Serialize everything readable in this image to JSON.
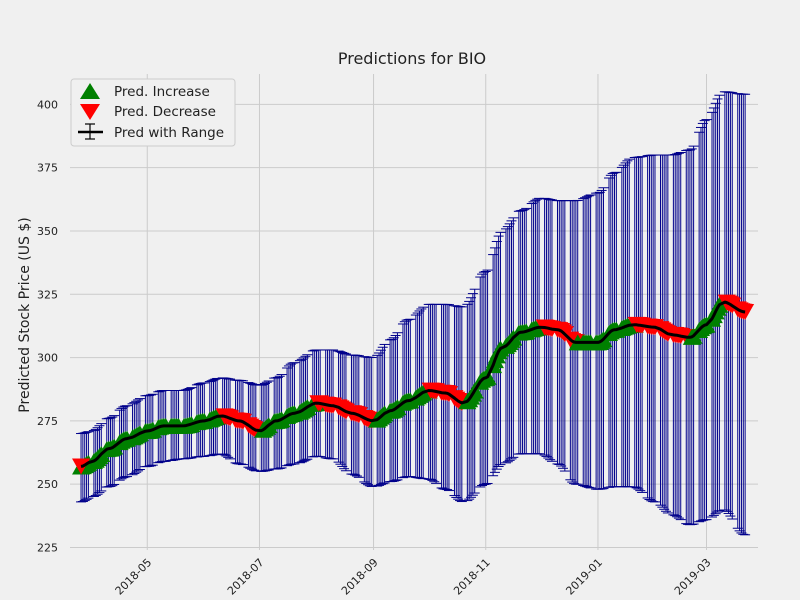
{
  "chart_data": {
    "type": "line",
    "title": "Predictions for BIO",
    "xlabel": "",
    "ylabel": "Predicted Stock Price (US $)",
    "x_start": "2018-03-26",
    "x_end": "2019-03-22",
    "xlim": [
      "2018-03-20",
      "2019-03-29"
    ],
    "ylim": [
      224,
      412
    ],
    "yticks": [
      225,
      250,
      275,
      300,
      325,
      350,
      375,
      400
    ],
    "xticks": [
      {
        "date": "2018-05-01",
        "label": "2018-05"
      },
      {
        "date": "2018-07-01",
        "label": "2018-07"
      },
      {
        "date": "2018-09-01",
        "label": "2018-09"
      },
      {
        "date": "2018-11-01",
        "label": "2018-11"
      },
      {
        "date": "2019-01-01",
        "label": "2019-01"
      },
      {
        "date": "2019-03-01",
        "label": "2019-03"
      }
    ],
    "grid": true,
    "legend_position": "top-left",
    "legend": [
      "Pred. Increase",
      "Pred. Decrease",
      "Pred with Range"
    ],
    "colors": {
      "increase": "#008000",
      "decrease": "#ff0000",
      "line": "#000000",
      "range": "#00008b"
    },
    "keypoints": [
      {
        "date": "2018-03-26",
        "pred": 257,
        "upper": 270,
        "lower": 243
      },
      {
        "date": "2018-04-01",
        "pred": 259,
        "upper": 271,
        "lower": 245
      },
      {
        "date": "2018-04-10",
        "pred": 264,
        "upper": 276,
        "lower": 249
      },
      {
        "date": "2018-04-20",
        "pred": 268,
        "upper": 281,
        "lower": 253
      },
      {
        "date": "2018-05-01",
        "pred": 271,
        "upper": 285,
        "lower": 257
      },
      {
        "date": "2018-05-10",
        "pred": 273,
        "upper": 287,
        "lower": 259
      },
      {
        "date": "2018-05-20",
        "pred": 273,
        "upper": 287,
        "lower": 260
      },
      {
        "date": "2018-06-01",
        "pred": 275,
        "upper": 290,
        "lower": 261
      },
      {
        "date": "2018-06-10",
        "pred": 277,
        "upper": 292,
        "lower": 262
      },
      {
        "date": "2018-06-20",
        "pred": 275,
        "upper": 291,
        "lower": 258
      },
      {
        "date": "2018-07-01",
        "pred": 271,
        "upper": 289,
        "lower": 255
      },
      {
        "date": "2018-07-10",
        "pred": 275,
        "upper": 292,
        "lower": 256
      },
      {
        "date": "2018-07-20",
        "pred": 278,
        "upper": 298,
        "lower": 258
      },
      {
        "date": "2018-08-01",
        "pred": 282,
        "upper": 303,
        "lower": 261
      },
      {
        "date": "2018-08-10",
        "pred": 281,
        "upper": 303,
        "lower": 260
      },
      {
        "date": "2018-08-20",
        "pred": 278,
        "upper": 301,
        "lower": 254
      },
      {
        "date": "2018-09-01",
        "pred": 275,
        "upper": 300,
        "lower": 249
      },
      {
        "date": "2018-09-10",
        "pred": 279,
        "upper": 307,
        "lower": 251
      },
      {
        "date": "2018-09-20",
        "pred": 283,
        "upper": 315,
        "lower": 253
      },
      {
        "date": "2018-10-01",
        "pred": 287,
        "upper": 321,
        "lower": 252
      },
      {
        "date": "2018-10-10",
        "pred": 286,
        "upper": 321,
        "lower": 248
      },
      {
        "date": "2018-10-20",
        "pred": 282,
        "upper": 320,
        "lower": 243
      },
      {
        "date": "2018-11-01",
        "pred": 292,
        "upper": 334,
        "lower": 250
      },
      {
        "date": "2018-11-10",
        "pred": 304,
        "upper": 350,
        "lower": 258
      },
      {
        "date": "2018-11-20",
        "pred": 310,
        "upper": 358,
        "lower": 262
      },
      {
        "date": "2018-12-01",
        "pred": 312,
        "upper": 363,
        "lower": 262
      },
      {
        "date": "2018-12-10",
        "pred": 311,
        "upper": 362,
        "lower": 258
      },
      {
        "date": "2018-12-20",
        "pred": 306,
        "upper": 362,
        "lower": 250
      },
      {
        "date": "2019-01-01",
        "pred": 306,
        "upper": 365,
        "lower": 248
      },
      {
        "date": "2019-01-10",
        "pred": 311,
        "upper": 373,
        "lower": 249
      },
      {
        "date": "2019-01-20",
        "pred": 313,
        "upper": 379,
        "lower": 249
      },
      {
        "date": "2019-02-01",
        "pred": 312,
        "upper": 380,
        "lower": 243
      },
      {
        "date": "2019-02-10",
        "pred": 309,
        "upper": 380,
        "lower": 238
      },
      {
        "date": "2019-02-20",
        "pred": 308,
        "upper": 382,
        "lower": 234
      },
      {
        "date": "2019-03-01",
        "pred": 313,
        "upper": 394,
        "lower": 236
      },
      {
        "date": "2019-03-10",
        "pred": 322,
        "upper": 405,
        "lower": 240
      },
      {
        "date": "2019-03-22",
        "pred": 318,
        "upper": 404,
        "lower": 230
      }
    ]
  }
}
